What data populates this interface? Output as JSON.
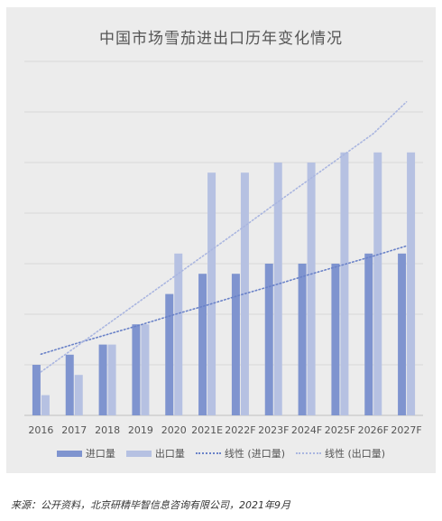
{
  "colors": {
    "import": "#7f94cf",
    "export": "#b6c1e2",
    "import_trend": "#6a82c8",
    "export_trend": "#aab6e0",
    "grid": "#d9d9d9",
    "panel": "#ececec"
  },
  "chart_data": {
    "type": "bar",
    "title": "中国市场雪茄进出口历年变化情况",
    "xlabel": "",
    "ylabel": "",
    "ylim": [
      0,
      70
    ],
    "yticks": [
      0,
      10,
      20,
      30,
      40,
      50,
      60,
      70
    ],
    "y_tick_labels_visible": false,
    "grid": "horizontal",
    "legend_position": "bottom",
    "categories": [
      "2016",
      "2017",
      "2018",
      "2019",
      "2020",
      "2021E",
      "2022F",
      "2023F",
      "2024F",
      "2025F",
      "2026F",
      "2027F"
    ],
    "series": [
      {
        "name": "进口量",
        "kind": "bar",
        "values": [
          10,
          12,
          14,
          18,
          24,
          28,
          28,
          30,
          30,
          30,
          32,
          32
        ]
      },
      {
        "name": "出口量",
        "kind": "bar",
        "values": [
          4,
          8,
          14,
          18,
          32,
          48,
          48,
          50,
          50,
          52,
          52,
          52
        ]
      },
      {
        "name": "线性 (进口量)",
        "kind": "trendline",
        "of": "进口量",
        "style": "dotted",
        "values": [
          12.1,
          14.1,
          16.0,
          17.9,
          19.9,
          21.8,
          23.8,
          25.7,
          27.7,
          29.6,
          31.5,
          33.5
        ]
      },
      {
        "name": "线性 (出口量)",
        "kind": "trendline",
        "of": "出口量",
        "style": "dotted",
        "values": [
          8.6,
          13.3,
          18.0,
          22.7,
          27.4,
          32.1,
          36.8,
          41.6,
          46.3,
          51.0,
          55.7,
          62.0
        ]
      }
    ]
  },
  "source": {
    "text": "来源：公开资料，北京研精毕智信息咨询有限公司，2021年9月"
  }
}
